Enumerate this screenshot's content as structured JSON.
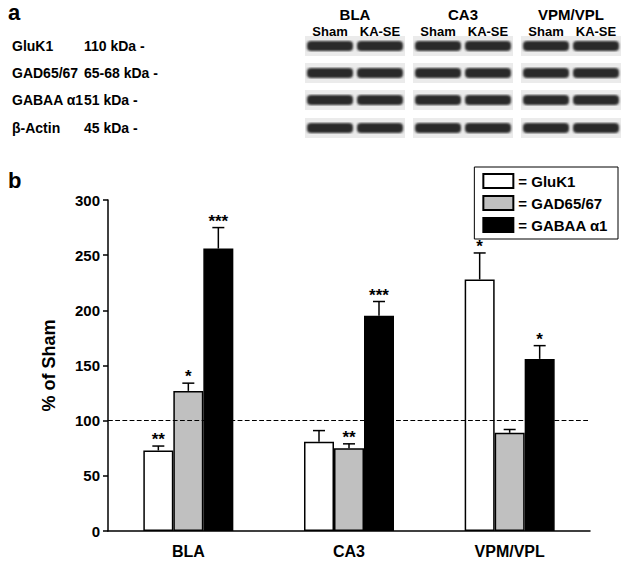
{
  "panels": [
    "a",
    "b"
  ],
  "blot": {
    "groups": [
      {
        "name": "BLA",
        "lanes": [
          "Sham",
          "KA-SE"
        ]
      },
      {
        "name": "CA3",
        "lanes": [
          "Sham",
          "KA-SE"
        ]
      },
      {
        "name": "VPM/VPL",
        "lanes": [
          "Sham",
          "KA-SE"
        ]
      }
    ],
    "rows": [
      {
        "protein": "GluK1",
        "size": "110 kDa -"
      },
      {
        "protein": "GAD65/67",
        "size": "65-68 kDa -"
      },
      {
        "protein": "GABAA α1",
        "size": "51 kDa -"
      },
      {
        "protein": "β-Actin",
        "size": "45 kDa -"
      }
    ]
  },
  "chart_data": {
    "type": "bar",
    "y_label": "% of Sham",
    "categories": [
      "BLA",
      "CA3",
      "VPM/VPL"
    ],
    "series": [
      {
        "name": "= GluK1",
        "color": "#ffffff",
        "values": [
          73,
          81,
          228
        ],
        "errors": [
          4,
          10,
          24
        ],
        "significance": [
          "**",
          null,
          "*"
        ]
      },
      {
        "name": "= GAD65/67",
        "color": "#c0c0c0",
        "values": [
          127,
          75,
          89
        ],
        "errors": [
          7,
          4,
          3
        ],
        "significance": [
          "*",
          "**",
          null
        ]
      },
      {
        "name": "= GABAA α1",
        "color": "#000000",
        "values": [
          256,
          195,
          156
        ],
        "errors": [
          19,
          13,
          12
        ],
        "significance": [
          "***",
          "***",
          "*"
        ]
      }
    ],
    "ylim": [
      0,
      300
    ],
    "yticks": [
      0,
      50,
      100,
      150,
      200,
      250,
      300
    ],
    "reference_line": 100,
    "legend": "upper right",
    "grid": false
  }
}
